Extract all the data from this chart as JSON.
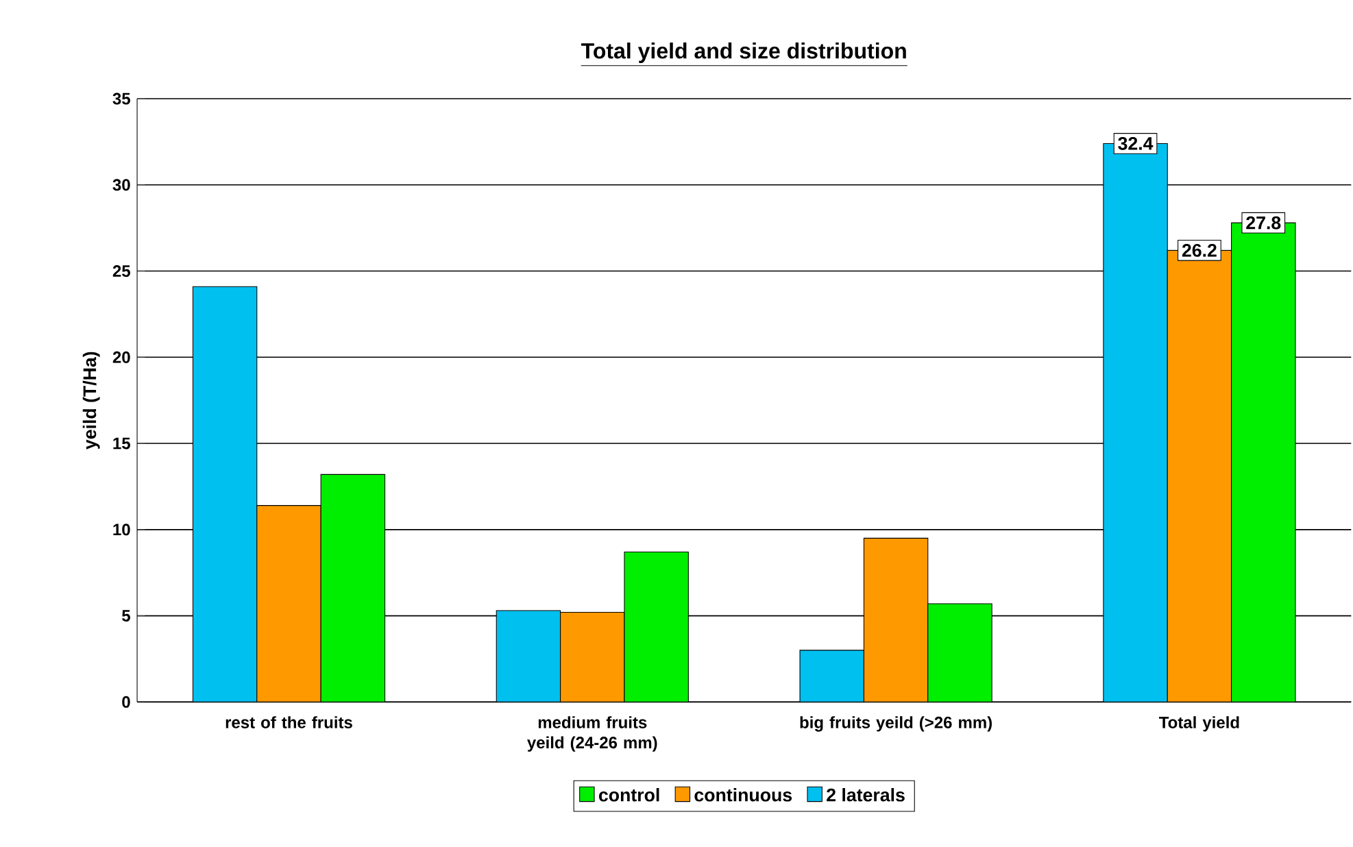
{
  "chart_data": {
    "type": "bar",
    "title": "Total yield and size distribution",
    "ylabel": "yeild (T/Ha)",
    "categories": [
      "rest of the fruits",
      "medium fruits yeild (24-26 mm)",
      "big fruits yeild (>26 mm)",
      "Total yield"
    ],
    "series": [
      {
        "name": "2 laterals",
        "color": "#00c0f0",
        "values": [
          24.1,
          5.3,
          3.0,
          32.4
        ],
        "value_labels": [
          null,
          null,
          null,
          "32.4"
        ]
      },
      {
        "name": "continuous",
        "color": "#ff9900",
        "values": [
          11.4,
          5.2,
          9.5,
          26.2
        ],
        "value_labels": [
          null,
          null,
          null,
          "26.2"
        ]
      },
      {
        "name": "control",
        "color": "#00ee00",
        "values": [
          13.2,
          8.7,
          5.7,
          27.8
        ],
        "value_labels": [
          null,
          null,
          null,
          "27.8"
        ]
      }
    ],
    "ylim": [
      0,
      35
    ],
    "yticks": [
      0,
      5,
      10,
      15,
      20,
      25,
      30,
      35
    ],
    "grid": "y",
    "legend": "bottom"
  }
}
